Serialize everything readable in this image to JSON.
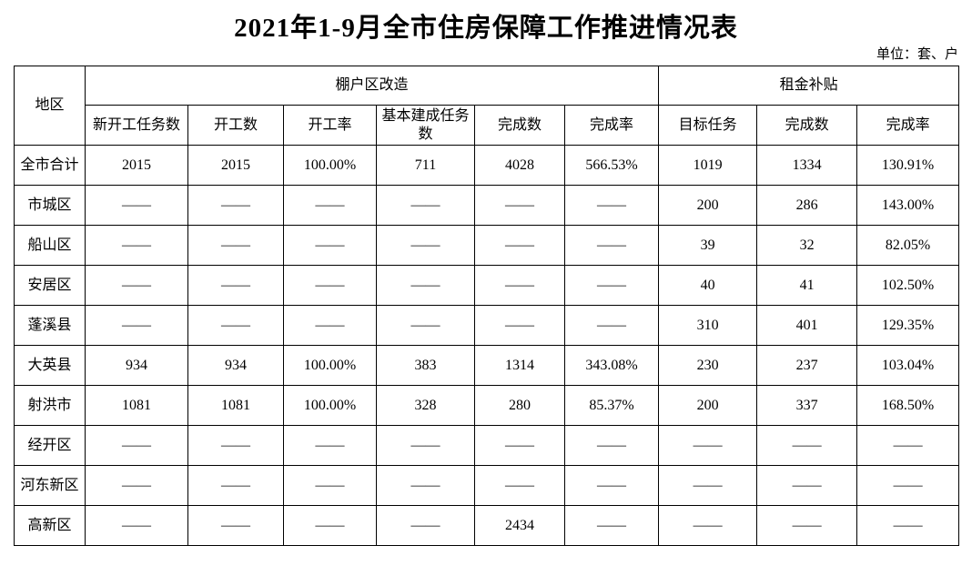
{
  "title": "2021年1-9月全市住房保障工作推进情况表",
  "unit_note": "单位：套、户",
  "table": {
    "region_header": "地区",
    "groups": [
      {
        "label": "棚户区改造",
        "columns": [
          "新开工任务数",
          "开工数",
          "开工率",
          "基本建成任务数",
          "完成数",
          "完成率"
        ]
      },
      {
        "label": "租金补贴",
        "columns": [
          "目标任务",
          "完成数",
          "完成率"
        ]
      }
    ],
    "rows": [
      {
        "region": "全市合计",
        "values": [
          "2015",
          "2015",
          "100.00%",
          "711",
          "4028",
          "566.53%",
          "1019",
          "1334",
          "130.91%"
        ]
      },
      {
        "region": "市城区",
        "values": [
          "——",
          "——",
          "——",
          "——",
          "——",
          "——",
          "200",
          "286",
          "143.00%"
        ]
      },
      {
        "region": "船山区",
        "values": [
          "——",
          "——",
          "——",
          "——",
          "——",
          "——",
          "39",
          "32",
          "82.05%"
        ]
      },
      {
        "region": "安居区",
        "values": [
          "——",
          "——",
          "——",
          "——",
          "——",
          "——",
          "40",
          "41",
          "102.50%"
        ]
      },
      {
        "region": "蓬溪县",
        "values": [
          "——",
          "——",
          "——",
          "——",
          "——",
          "——",
          "310",
          "401",
          "129.35%"
        ]
      },
      {
        "region": "大英县",
        "values": [
          "934",
          "934",
          "100.00%",
          "383",
          "1314",
          "343.08%",
          "230",
          "237",
          "103.04%"
        ]
      },
      {
        "region": "射洪市",
        "values": [
          "1081",
          "1081",
          "100.00%",
          "328",
          "280",
          "85.37%",
          "200",
          "337",
          "168.50%"
        ]
      },
      {
        "region": "经开区",
        "values": [
          "——",
          "——",
          "——",
          "——",
          "——",
          "——",
          "——",
          "——",
          "——"
        ]
      },
      {
        "region": "河东新区",
        "values": [
          "——",
          "——",
          "——",
          "——",
          "——",
          "——",
          "——",
          "——",
          "——"
        ]
      },
      {
        "region": "高新区",
        "values": [
          "——",
          "——",
          "——",
          "——",
          "2434",
          "——",
          "——",
          "——",
          "——"
        ]
      }
    ]
  }
}
